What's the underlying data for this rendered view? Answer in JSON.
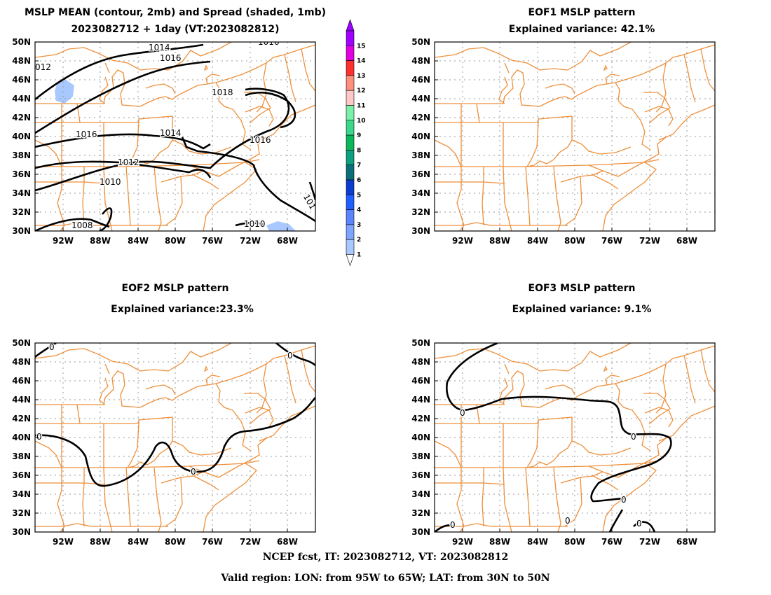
{
  "panels": [
    {
      "id": "mean",
      "title_line1": "MSLP MEAN (contour, 2mb) and Spread (shaded, 1mb)",
      "title_line2": "2023082712 + 1day (VT:2023082812)",
      "contour_labels": [
        "1014",
        "1016",
        "012",
        "1018",
        "1016",
        "1014",
        "1016",
        "1012",
        "1010",
        "1008",
        "1010",
        "101",
        "1016"
      ]
    },
    {
      "id": "eof1",
      "title_line1": "EOF1 MSLP pattern",
      "title_line2": "Explained variance: 42.1%"
    },
    {
      "id": "eof2",
      "title_line1": "EOF2 MSLP pattern",
      "title_line2": "Explained variance:23.3%",
      "contour_labels": [
        "0",
        "0",
        "0",
        "0"
      ]
    },
    {
      "id": "eof3",
      "title_line1": "EOF3 MSLP pattern",
      "title_line2": "Explained variance: 9.1%",
      "contour_labels": [
        "0",
        "0",
        "0",
        "0",
        "0",
        "0"
      ]
    }
  ],
  "axes": {
    "lat_ticks": [
      "50N",
      "48N",
      "46N",
      "44N",
      "42N",
      "40N",
      "38N",
      "36N",
      "34N",
      "32N",
      "30N"
    ],
    "lon_ticks": [
      "92W",
      "88W",
      "84W",
      "80W",
      "76W",
      "72W",
      "68W"
    ]
  },
  "colorbar": {
    "levels": [
      "1",
      "2",
      "3",
      "4",
      "5",
      "6",
      "7",
      "8",
      "9",
      "10",
      "11",
      "12",
      "13",
      "14",
      "15"
    ],
    "colors": [
      "#a8c8ff",
      "#7ea4ff",
      "#5c84ff",
      "#1f5fff",
      "#0a3ccf",
      "#0a6f78",
      "#0aa080",
      "#0ab85a",
      "#3ad88a",
      "#7af0a8",
      "#ffc8c8",
      "#ff9080",
      "#ff3030",
      "#e000e0",
      "#a000ff"
    ]
  },
  "footer": {
    "line1": "NCEP fcst, IT: 2023082712, VT: 2023082812",
    "line2": "Valid region: LON: from 95W to 65W; LAT: from 30N to 50N"
  },
  "colors": {
    "map_lines": "#ee8f3a",
    "grid": "#9a9a9a",
    "contour": "#000000",
    "spread_shade": "#a8c8ff"
  }
}
